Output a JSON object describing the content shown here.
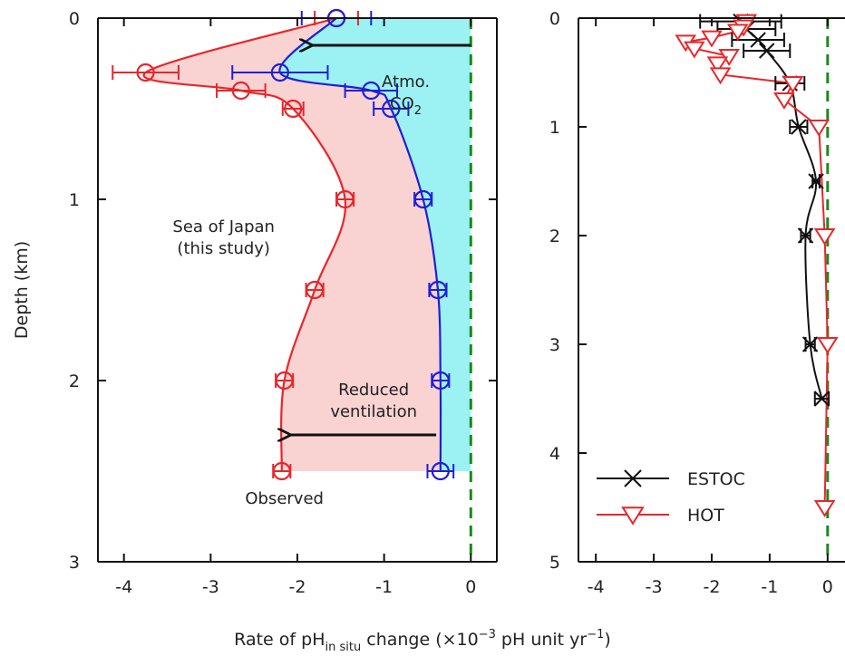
{
  "chart_data": [
    {
      "type": "line",
      "panel": "left",
      "xlim": [
        -4.3,
        0.3
      ],
      "ylim": [
        3,
        0
      ],
      "y_inverted": true,
      "xticks": [
        -4,
        -3,
        -2,
        -1,
        0
      ],
      "yticks": [
        0,
        1,
        2,
        3
      ],
      "xtick_labels": [
        "-4",
        "-3",
        "-2",
        "-1",
        "0"
      ],
      "ytick_labels": [
        "0",
        "1",
        "2",
        "3"
      ],
      "grid": false,
      "reference_line": {
        "x": 0,
        "style": "dashed",
        "color": "#1a8a1a"
      },
      "series": [
        {
          "name": "Observed",
          "color": "#e8262a",
          "marker": "circle",
          "points": [
            {
              "x": -1.55,
              "y": 0.0,
              "err": 0.25
            },
            {
              "x": -3.75,
              "y": 0.3,
              "err": 0.38
            },
            {
              "x": -2.65,
              "y": 0.4,
              "err": 0.28
            },
            {
              "x": -2.05,
              "y": 0.5,
              "err": 0.12
            },
            {
              "x": -1.45,
              "y": 1.0,
              "err": 0.1
            },
            {
              "x": -1.8,
              "y": 1.5,
              "err": 0.1
            },
            {
              "x": -2.15,
              "y": 2.0,
              "err": 0.1
            },
            {
              "x": -2.18,
              "y": 2.5,
              "err": 0.1
            }
          ]
        },
        {
          "name": "",
          "color": "#1f1fd6",
          "marker": "circle",
          "points": [
            {
              "x": -1.55,
              "y": 0.0,
              "err": 0.4
            },
            {
              "x": -2.2,
              "y": 0.3,
              "err": 0.55
            },
            {
              "x": -1.15,
              "y": 0.4,
              "err": 0.3
            },
            {
              "x": -0.92,
              "y": 0.5,
              "err": 0.2
            },
            {
              "x": -0.55,
              "y": 1.0,
              "err": 0.1
            },
            {
              "x": -0.38,
              "y": 1.5,
              "err": 0.1
            },
            {
              "x": -0.35,
              "y": 2.0,
              "err": 0.1
            },
            {
              "x": -0.35,
              "y": 2.5,
              "err": 0.15
            }
          ]
        }
      ],
      "annotations": [
        {
          "lines": [
            "Atmo.",
            "CO"
          ],
          "sub": "2",
          "x": -0.75,
          "y": 0.38
        },
        {
          "lines": [
            "Sea of Japan",
            "(this study)"
          ],
          "x": -2.85,
          "y": 1.18
        },
        {
          "lines": [
            "Reduced",
            "ventilation"
          ],
          "x": -1.12,
          "y": 2.08
        },
        {
          "lines": [
            "Observed"
          ],
          "x": -2.15,
          "y": 2.68,
          "color": "#e8262a"
        }
      ],
      "arrows": [
        {
          "from": {
            "x": 0.0,
            "y": 0.15
          },
          "to": {
            "x": -1.85,
            "y": 0.15
          }
        },
        {
          "from": {
            "x": -0.4,
            "y": 2.3
          },
          "to": {
            "x": -2.1,
            "y": 2.3
          }
        }
      ]
    },
    {
      "type": "line",
      "panel": "right",
      "xlim": [
        -4.3,
        0.3
      ],
      "ylim": [
        5,
        0
      ],
      "y_inverted": true,
      "xticks": [
        -4,
        -3,
        -2,
        -1,
        0
      ],
      "yticks": [
        0,
        1,
        2,
        3,
        4,
        5
      ],
      "xtick_labels": [
        "-4",
        "-3",
        "-2",
        "-1",
        "0"
      ],
      "ytick_labels": [
        "0",
        "1",
        "2",
        "3",
        "4",
        "5"
      ],
      "grid": false,
      "reference_line": {
        "x": 0,
        "style": "dashed",
        "color": "#1a8a1a"
      },
      "legend": "bottom-left",
      "series": [
        {
          "name": "ESTOC",
          "color": "#111111",
          "marker": "x",
          "points": [
            {
              "x": -1.5,
              "y": 0.03,
              "err": 0.7
            },
            {
              "x": -1.4,
              "y": 0.1,
              "err": 0.5
            },
            {
              "x": -1.2,
              "y": 0.2,
              "err": 0.45
            },
            {
              "x": -1.05,
              "y": 0.3,
              "err": 0.4
            },
            {
              "x": -0.65,
              "y": 0.6,
              "err": 0.25
            },
            {
              "x": -0.5,
              "y": 1.0,
              "err": 0.15
            },
            {
              "x": -0.2,
              "y": 1.5,
              "err": 0.06
            },
            {
              "x": -0.38,
              "y": 2.0,
              "err": 0.08
            },
            {
              "x": -0.3,
              "y": 3.0,
              "err": 0.08
            },
            {
              "x": -0.1,
              "y": 3.5,
              "err": 0.12
            }
          ]
        },
        {
          "name": "HOT",
          "color": "#e8262a",
          "marker": "triangle-down",
          "points": [
            {
              "x": -1.4,
              "y": 0.03
            },
            {
              "x": -1.45,
              "y": 0.08
            },
            {
              "x": -1.55,
              "y": 0.12
            },
            {
              "x": -2.0,
              "y": 0.18
            },
            {
              "x": -2.45,
              "y": 0.22
            },
            {
              "x": -2.3,
              "y": 0.28
            },
            {
              "x": -1.7,
              "y": 0.35
            },
            {
              "x": -1.9,
              "y": 0.42
            },
            {
              "x": -1.85,
              "y": 0.52
            },
            {
              "x": -0.6,
              "y": 0.6
            },
            {
              "x": -0.75,
              "y": 0.75
            },
            {
              "x": -0.15,
              "y": 1.0
            },
            {
              "x": -0.05,
              "y": 2.0
            },
            {
              "x": 0.0,
              "y": 3.0
            },
            {
              "x": -0.05,
              "y": 4.5
            }
          ]
        }
      ]
    }
  ],
  "axis_labels": {
    "y": "Depth (km)",
    "x_pre": "Rate of pH",
    "x_sub": "in situ",
    "x_mid": " change (×10",
    "x_sup1": "−3",
    "x_mid2": " pH unit yr",
    "x_sup2": "−1",
    "x_post": ")"
  },
  "colors": {
    "red": "#e8262a",
    "blue": "#1f1fd6",
    "black": "#111111",
    "green": "#1a8a1a",
    "pink_fill": "#f9d2d2",
    "cyan_fill": "#9cf2f3"
  }
}
